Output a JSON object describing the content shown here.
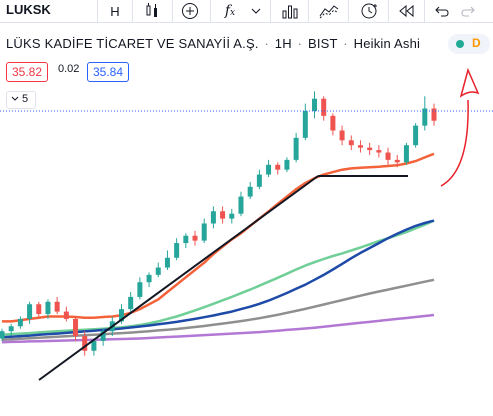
{
  "toolbar": {
    "symbol": "LUKSK",
    "interval": "H",
    "icons": [
      "candles-icon",
      "add-compare-icon",
      "indicators-icon",
      "dropdown-icon",
      "bar-chart-icon",
      "area-chart-icon",
      "alert-icon",
      "replay-icon",
      "undo-icon",
      "redo-icon"
    ]
  },
  "legend": {
    "name": "LÜKS KADİFE TİCARET VE SANAYİİ A.Ş.",
    "interval": "1H",
    "exchange": "BIST",
    "chart_type": "Heikin Ashi",
    "badge_d": "D"
  },
  "prices": {
    "bid": "35.82",
    "spread": "0.02",
    "ask": "35.84"
  },
  "indicators_collapsed": {
    "count": "5"
  },
  "colors": {
    "up": "#26a69a",
    "down": "#ef5350",
    "ma1": "#f4623a",
    "ma2": "#6fcf97",
    "ma3": "#1e4aa8",
    "ma4": "#8f8f8f",
    "ma5": "#b278d4"
  },
  "chart_data": {
    "type": "candlestick",
    "ohlc": [
      [
        0,
        30.9,
        31.3,
        30.8,
        31.2
      ],
      [
        1,
        31.2,
        31.5,
        31.0,
        31.4
      ],
      [
        2,
        31.4,
        31.8,
        31.3,
        31.7
      ],
      [
        3,
        31.7,
        32.4,
        31.5,
        32.3
      ],
      [
        4,
        32.3,
        32.4,
        31.8,
        31.9
      ],
      [
        5,
        31.9,
        32.5,
        31.7,
        32.4
      ],
      [
        6,
        32.4,
        32.6,
        31.9,
        32.0
      ],
      [
        7,
        32.0,
        32.2,
        31.6,
        31.7
      ],
      [
        8,
        31.7,
        31.8,
        30.8,
        31.0
      ],
      [
        9,
        31.0,
        31.2,
        30.2,
        30.4
      ],
      [
        10,
        30.4,
        30.9,
        30.2,
        30.8
      ],
      [
        11,
        30.8,
        31.3,
        30.6,
        31.2
      ],
      [
        12,
        31.2,
        31.8,
        31.0,
        31.6
      ],
      [
        13,
        31.6,
        32.3,
        31.5,
        32.1
      ],
      [
        14,
        32.1,
        32.8,
        32.0,
        32.6
      ],
      [
        15,
        32.6,
        33.4,
        32.5,
        33.2
      ],
      [
        16,
        33.2,
        33.6,
        33.0,
        33.5
      ],
      [
        17,
        33.5,
        34.0,
        33.4,
        33.8
      ],
      [
        18,
        33.8,
        34.5,
        33.7,
        34.2
      ],
      [
        19,
        34.2,
        35.0,
        34.1,
        34.8
      ],
      [
        20,
        34.8,
        35.2,
        34.6,
        35.1
      ],
      [
        21,
        35.1,
        35.3,
        34.7,
        34.9
      ],
      [
        22,
        34.9,
        35.8,
        34.8,
        35.6
      ],
      [
        23,
        35.6,
        36.3,
        35.4,
        36.1
      ],
      [
        24,
        36.1,
        36.3,
        35.6,
        35.8
      ],
      [
        25,
        35.8,
        36.2,
        35.6,
        36.0
      ],
      [
        26,
        36.0,
        36.9,
        35.9,
        36.7
      ],
      [
        27,
        36.7,
        37.3,
        36.6,
        37.1
      ],
      [
        28,
        37.1,
        37.8,
        37.0,
        37.6
      ],
      [
        29,
        37.6,
        38.2,
        37.5,
        38.0
      ],
      [
        30,
        38.0,
        38.1,
        37.6,
        37.8
      ],
      [
        31,
        37.8,
        38.3,
        37.7,
        38.2
      ],
      [
        32,
        38.2,
        39.3,
        38.1,
        39.1
      ],
      [
        33,
        39.1,
        40.5,
        39.0,
        40.2
      ],
      [
        34,
        40.2,
        41.0,
        39.9,
        40.7
      ],
      [
        35,
        40.7,
        40.8,
        39.8,
        40.0
      ],
      [
        36,
        40.0,
        40.1,
        39.2,
        39.4
      ],
      [
        37,
        39.4,
        39.6,
        38.8,
        39.0
      ],
      [
        38,
        39.0,
        39.2,
        38.6,
        38.8
      ],
      [
        39,
        38.8,
        39.0,
        38.5,
        38.7
      ],
      [
        40,
        38.7,
        38.9,
        38.4,
        38.6
      ],
      [
        41,
        38.6,
        38.8,
        38.3,
        38.5
      ],
      [
        42,
        38.5,
        38.7,
        38.0,
        38.2
      ],
      [
        43,
        38.2,
        38.4,
        37.9,
        38.1
      ],
      [
        44,
        38.1,
        38.9,
        38.0,
        38.8
      ],
      [
        45,
        38.8,
        39.7,
        38.7,
        39.6
      ],
      [
        46,
        39.6,
        40.8,
        39.4,
        40.3
      ],
      [
        47,
        40.3,
        40.5,
        39.6,
        39.8
      ]
    ],
    "moving_averages": [
      {
        "color": "ma1",
        "values": [
          31.6,
          31.6,
          31.65,
          31.7,
          31.75,
          31.8,
          31.8,
          31.8,
          31.78,
          31.75,
          31.75,
          31.78,
          31.8,
          31.85,
          31.95,
          32.1,
          32.3,
          32.5,
          32.8,
          33.1,
          33.4,
          33.7,
          34.0,
          34.35,
          34.65,
          34.95,
          35.2,
          35.5,
          35.8,
          36.1,
          36.4,
          36.7,
          37.0,
          37.25,
          37.45,
          37.6,
          37.7,
          37.8,
          37.85,
          37.88,
          37.9,
          37.92,
          37.95,
          37.98,
          38.05,
          38.15,
          38.3,
          38.45
        ]
      },
      {
        "color": "ma2",
        "values": [
          31.05,
          31.08,
          31.1,
          31.12,
          31.15,
          31.18,
          31.2,
          31.22,
          31.24,
          31.26,
          31.28,
          31.3,
          31.33,
          31.36,
          31.4,
          31.45,
          31.52,
          31.6,
          31.7,
          31.8,
          31.92,
          32.05,
          32.18,
          32.32,
          32.46,
          32.6,
          32.75,
          32.9,
          33.06,
          33.22,
          33.38,
          33.55,
          33.72,
          33.88,
          34.02,
          34.15,
          34.27,
          34.38,
          34.5,
          34.62,
          34.75,
          34.88,
          35.0,
          35.12,
          35.25,
          35.4,
          35.55,
          35.72
        ]
      },
      {
        "color": "ma3",
        "values": [
          30.95,
          30.97,
          31.0,
          31.02,
          31.05,
          31.08,
          31.1,
          31.13,
          31.16,
          31.19,
          31.22,
          31.25,
          31.28,
          31.31,
          31.35,
          31.39,
          31.43,
          31.48,
          31.53,
          31.58,
          31.64,
          31.7,
          31.77,
          31.84,
          31.92,
          32.0,
          32.1,
          32.2,
          32.32,
          32.45,
          32.6,
          32.76,
          32.93,
          33.1,
          33.3,
          33.5,
          33.72,
          33.95,
          34.18,
          34.4,
          34.6,
          34.8,
          35.0,
          35.18,
          35.35,
          35.5,
          35.62,
          35.72
        ]
      },
      {
        "color": "ma4",
        "values": [
          30.85,
          30.87,
          30.89,
          30.91,
          30.93,
          30.95,
          30.97,
          30.99,
          31.01,
          31.03,
          31.05,
          31.07,
          31.1,
          31.12,
          31.14,
          31.17,
          31.2,
          31.23,
          31.26,
          31.29,
          31.33,
          31.37,
          31.41,
          31.46,
          31.51,
          31.56,
          31.61,
          31.67,
          31.73,
          31.8,
          31.87,
          31.95,
          32.03,
          32.11,
          32.2,
          32.29,
          32.38,
          32.47,
          32.56,
          32.65,
          32.74,
          32.82,
          32.9,
          32.98,
          33.06,
          33.14,
          33.22,
          33.3
        ]
      },
      {
        "color": "ma5",
        "values": [
          30.75,
          30.76,
          30.77,
          30.78,
          30.79,
          30.8,
          30.81,
          30.82,
          30.83,
          30.84,
          30.85,
          30.86,
          30.87,
          30.88,
          30.89,
          30.9,
          30.92,
          30.94,
          30.96,
          30.98,
          31.0,
          31.02,
          31.04,
          31.06,
          31.08,
          31.1,
          31.12,
          31.14,
          31.16,
          31.19,
          31.22,
          31.25,
          31.28,
          31.31,
          31.34,
          31.38,
          31.42,
          31.46,
          31.5,
          31.54,
          31.58,
          31.62,
          31.66,
          31.7,
          31.74,
          31.78,
          31.82,
          31.86
        ]
      }
    ],
    "ylim": [
      29.0,
      42.2
    ],
    "dotted_level": 40.2
  }
}
